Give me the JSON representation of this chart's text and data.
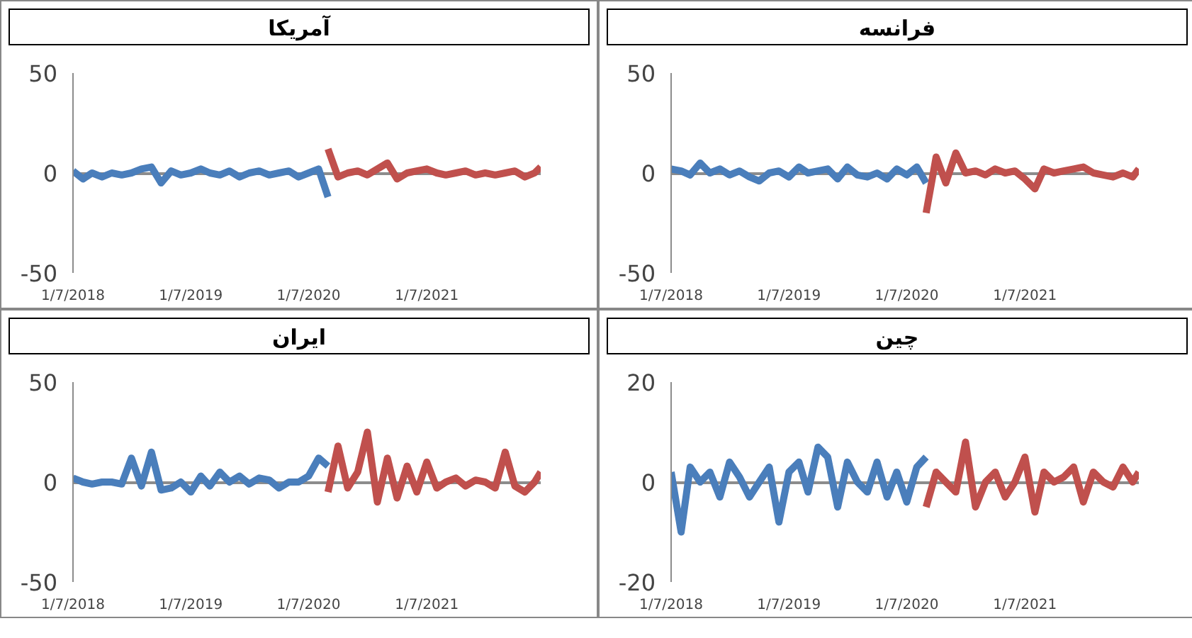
{
  "chart_data": [
    {
      "type": "line",
      "title": "فرانسه",
      "xlim": [
        "2018-01-07",
        "2021-12-26"
      ],
      "ylim": [
        -50,
        50
      ],
      "yticks": [
        -50,
        0,
        50
      ],
      "grid": "y",
      "xticks": [
        {
          "value": "2018-01-07",
          "label": "1/7/2018"
        },
        {
          "value": "2019-01-07",
          "label": "1/7/2019"
        },
        {
          "value": "2020-01-07",
          "label": "1/7/2020"
        },
        {
          "value": "2021-01-07",
          "label": "1/7/2021"
        }
      ],
      "series": [
        {
          "color": "#4a7ebb",
          "x": [
            "2018-01-07",
            "2018-02-07",
            "2018-03-07",
            "2018-04-07",
            "2018-05-07",
            "2018-06-07",
            "2018-07-07",
            "2018-08-07",
            "2018-09-07",
            "2018-10-07",
            "2018-11-07",
            "2018-12-07",
            "2019-01-07",
            "2019-02-07",
            "2019-03-07",
            "2019-04-07",
            "2019-05-07",
            "2019-06-07",
            "2019-07-07",
            "2019-08-07",
            "2019-09-07",
            "2019-10-07",
            "2019-11-07",
            "2019-12-07",
            "2020-01-07",
            "2020-02-07",
            "2020-03-07"
          ],
          "values": [
            2,
            1,
            -1,
            5,
            0,
            2,
            -1,
            1,
            -2,
            -4,
            0,
            1,
            -2,
            3,
            0,
            1,
            2,
            -3,
            3,
            -1,
            -2,
            0,
            -3,
            2,
            -1,
            3,
            -5
          ]
        },
        {
          "color": "#c0504d",
          "x": [
            "2020-03-07",
            "2020-04-07",
            "2020-05-07",
            "2020-06-07",
            "2020-07-07",
            "2020-08-07",
            "2020-09-07",
            "2020-10-07",
            "2020-11-07",
            "2020-12-07",
            "2021-01-07",
            "2021-02-07",
            "2021-03-07",
            "2021-04-07",
            "2021-05-07",
            "2021-06-07",
            "2021-07-07",
            "2021-08-07",
            "2021-09-07",
            "2021-10-07",
            "2021-11-07",
            "2021-12-07",
            "2021-12-26"
          ],
          "values": [
            -20,
            8,
            -5,
            10,
            0,
            1,
            -1,
            2,
            0,
            1,
            -3,
            -8,
            2,
            0,
            1,
            2,
            3,
            0,
            -1,
            -2,
            0,
            -2,
            2
          ]
        }
      ]
    },
    {
      "type": "line",
      "title": "آمریکا",
      "xlim": [
        "2018-01-07",
        "2021-12-26"
      ],
      "ylim": [
        -50,
        50
      ],
      "yticks": [
        -50,
        0,
        50
      ],
      "grid": "y",
      "xticks": [
        {
          "value": "2018-01-07",
          "label": "1/7/2018"
        },
        {
          "value": "2019-01-07",
          "label": "1/7/2019"
        },
        {
          "value": "2020-01-07",
          "label": "1/7/2020"
        },
        {
          "value": "2021-01-07",
          "label": "1/7/2021"
        }
      ],
      "series": [
        {
          "color": "#4a7ebb",
          "x": [
            "2018-01-07",
            "2018-02-07",
            "2018-03-07",
            "2018-04-07",
            "2018-05-07",
            "2018-06-07",
            "2018-07-07",
            "2018-08-07",
            "2018-09-07",
            "2018-10-07",
            "2018-11-07",
            "2018-12-07",
            "2019-01-07",
            "2019-02-07",
            "2019-03-07",
            "2019-04-07",
            "2019-05-07",
            "2019-06-07",
            "2019-07-07",
            "2019-08-07",
            "2019-09-07",
            "2019-10-07",
            "2019-11-07",
            "2019-12-07",
            "2020-01-07",
            "2020-02-07",
            "2020-03-07"
          ],
          "values": [
            1,
            -3,
            0,
            -2,
            0,
            -1,
            0,
            2,
            3,
            -5,
            1,
            -1,
            0,
            2,
            0,
            -1,
            1,
            -2,
            0,
            1,
            -1,
            0,
            1,
            -2,
            0,
            2,
            -12
          ]
        },
        {
          "color": "#c0504d",
          "x": [
            "2020-03-07",
            "2020-04-07",
            "2020-05-07",
            "2020-06-07",
            "2020-07-07",
            "2020-08-07",
            "2020-09-07",
            "2020-10-07",
            "2020-11-07",
            "2020-12-07",
            "2021-01-07",
            "2021-02-07",
            "2021-03-07",
            "2021-04-07",
            "2021-05-07",
            "2021-06-07",
            "2021-07-07",
            "2021-08-07",
            "2021-09-07",
            "2021-10-07",
            "2021-11-07",
            "2021-12-07",
            "2021-12-26"
          ],
          "values": [
            12,
            -2,
            0,
            1,
            -1,
            2,
            5,
            -3,
            0,
            1,
            2,
            0,
            -1,
            0,
            1,
            -1,
            0,
            -1,
            0,
            1,
            -2,
            0,
            3
          ]
        }
      ]
    },
    {
      "type": "line",
      "title": "چین",
      "xlim": [
        "2018-01-07",
        "2021-12-26"
      ],
      "ylim": [
        -20,
        20
      ],
      "yticks": [
        -20,
        0,
        20
      ],
      "grid": "y",
      "xticks": [
        {
          "value": "2018-01-07",
          "label": "1/7/2018"
        },
        {
          "value": "2019-01-07",
          "label": "1/7/2019"
        },
        {
          "value": "2020-01-07",
          "label": "1/7/2020"
        },
        {
          "value": "2021-01-07",
          "label": "1/7/2021"
        }
      ],
      "series": [
        {
          "color": "#4a7ebb",
          "x": [
            "2018-01-07",
            "2018-02-07",
            "2018-03-07",
            "2018-04-07",
            "2018-05-07",
            "2018-06-07",
            "2018-07-07",
            "2018-08-07",
            "2018-09-07",
            "2018-10-07",
            "2018-11-07",
            "2018-12-07",
            "2019-01-07",
            "2019-02-07",
            "2019-03-07",
            "2019-04-07",
            "2019-05-07",
            "2019-06-07",
            "2019-07-07",
            "2019-08-07",
            "2019-09-07",
            "2019-10-07",
            "2019-11-07",
            "2019-12-07",
            "2020-01-07",
            "2020-02-07",
            "2020-03-07"
          ],
          "values": [
            2,
            -10,
            3,
            0,
            2,
            -3,
            4,
            1,
            -3,
            0,
            3,
            -8,
            2,
            4,
            -2,
            7,
            5,
            -5,
            4,
            0,
            -2,
            4,
            -3,
            2,
            -4,
            3,
            5
          ]
        },
        {
          "color": "#c0504d",
          "x": [
            "2020-03-07",
            "2020-04-07",
            "2020-05-07",
            "2020-06-07",
            "2020-07-07",
            "2020-08-07",
            "2020-09-07",
            "2020-10-07",
            "2020-11-07",
            "2020-12-07",
            "2021-01-07",
            "2021-02-07",
            "2021-03-07",
            "2021-04-07",
            "2021-05-07",
            "2021-06-07",
            "2021-07-07",
            "2021-08-07",
            "2021-09-07",
            "2021-10-07",
            "2021-11-07",
            "2021-12-07",
            "2021-12-26"
          ],
          "values": [
            -5,
            2,
            0,
            -2,
            8,
            -5,
            0,
            2,
            -3,
            0,
            5,
            -6,
            2,
            0,
            1,
            3,
            -4,
            2,
            0,
            -1,
            3,
            0,
            2
          ]
        }
      ]
    },
    {
      "type": "line",
      "title": "ایران",
      "xlim": [
        "2018-01-07",
        "2021-12-26"
      ],
      "ylim": [
        -50,
        50
      ],
      "yticks": [
        -50,
        0,
        50
      ],
      "grid": "y",
      "xticks": [
        {
          "value": "2018-01-07",
          "label": "1/7/2018"
        },
        {
          "value": "2019-01-07",
          "label": "1/7/2019"
        },
        {
          "value": "2020-01-07",
          "label": "1/7/2020"
        },
        {
          "value": "2021-01-07",
          "label": "1/7/2021"
        }
      ],
      "series": [
        {
          "color": "#4a7ebb",
          "x": [
            "2018-01-07",
            "2018-02-07",
            "2018-03-07",
            "2018-04-07",
            "2018-05-07",
            "2018-06-07",
            "2018-07-07",
            "2018-08-07",
            "2018-09-07",
            "2018-10-07",
            "2018-11-07",
            "2018-12-07",
            "2019-01-07",
            "2019-02-07",
            "2019-03-07",
            "2019-04-07",
            "2019-05-07",
            "2019-06-07",
            "2019-07-07",
            "2019-08-07",
            "2019-09-07",
            "2019-10-07",
            "2019-11-07",
            "2019-12-07",
            "2020-01-07",
            "2020-02-07",
            "2020-03-07"
          ],
          "values": [
            2,
            0,
            -1,
            0,
            0,
            -1,
            12,
            -2,
            15,
            -4,
            -3,
            0,
            -5,
            3,
            -2,
            5,
            0,
            3,
            -1,
            2,
            1,
            -3,
            0,
            0,
            3,
            12,
            8
          ]
        },
        {
          "color": "#c0504d",
          "x": [
            "2020-03-07",
            "2020-04-07",
            "2020-05-07",
            "2020-06-07",
            "2020-07-07",
            "2020-08-07",
            "2020-09-07",
            "2020-10-07",
            "2020-11-07",
            "2020-12-07",
            "2021-01-07",
            "2021-02-07",
            "2021-03-07",
            "2021-04-07",
            "2021-05-07",
            "2021-06-07",
            "2021-07-07",
            "2021-08-07",
            "2021-09-07",
            "2021-10-07",
            "2021-11-07",
            "2021-12-07",
            "2021-12-26"
          ],
          "values": [
            -5,
            18,
            -3,
            5,
            25,
            -10,
            12,
            -8,
            8,
            -5,
            10,
            -3,
            0,
            2,
            -2,
            1,
            0,
            -3,
            15,
            -2,
            -5,
            0,
            5
          ]
        }
      ]
    }
  ]
}
